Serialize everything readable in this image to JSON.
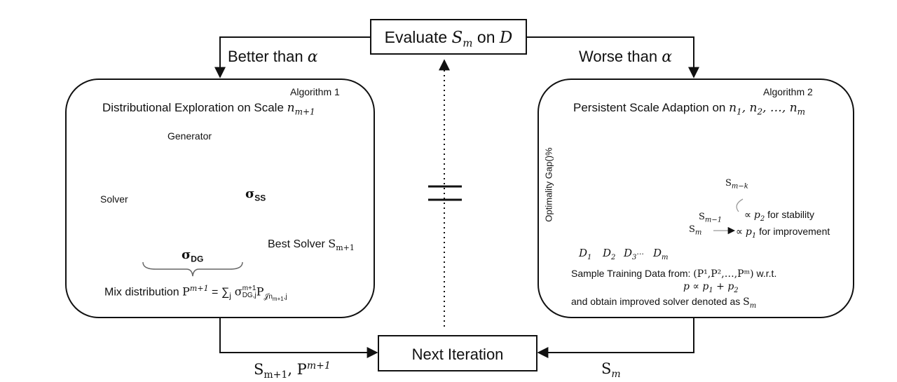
{
  "top_box": {
    "label": "Evaluate",
    "var": "S",
    "sub": "m",
    "mid": " on ",
    "dataset": "D"
  },
  "left_branch": {
    "label": "Better than ",
    "symbol": "α"
  },
  "right_branch": {
    "label": "Worse than ",
    "symbol": "α"
  },
  "bottom_box": {
    "label": "Next Iteration"
  },
  "bottom_left_label": {
    "s": "S",
    "s_sub": "m+1",
    "sep": ", ",
    "p": "P",
    "p_sup": "m+1"
  },
  "bottom_right_label": {
    "s": "S",
    "s_sub": "m"
  },
  "algo1": {
    "tag": "Algorithm 1",
    "title": "Distributional Exploration on Scale ",
    "title_var": "n",
    "title_sub": "m+1",
    "generator_label": "Generator",
    "solver_label": "Solver",
    "sigma_ss": "σ",
    "sigma_ss_sub": "SS",
    "sigma_dg": "σ",
    "sigma_dg_sub": "DG",
    "best_solver": "Best Solver ",
    "best_solver_var": "S",
    "best_solver_sub": "m+1",
    "mix_label": "Mix distribution ",
    "mix_P": "P",
    "mix_sup": "m+1",
    "mix_eq": " = ∑",
    "mix_j": "j",
    "mix_sigma": " σ",
    "mix_sigma_sup": "m+1",
    "mix_sigma_sub": "DG,j",
    "mix_P2": "P",
    "mix_P2_sub": "𝒥n",
    "mix_P2_subsub": "m+1",
    "mix_P2_subj": ",j",
    "accent": "#7a9bd8",
    "highlight": "#f4a0a0"
  },
  "algo2": {
    "tag": "Algorithm 2",
    "title": "Persistent Scale Adaption on ",
    "title_vars": "n",
    "title_seq": [
      "1",
      "2",
      "m"
    ],
    "y_axis": "Optimality Gap()%",
    "x_ticks": [
      "D",
      "D",
      "D",
      "D"
    ],
    "x_tick_subs": [
      "1",
      "2",
      "3",
      "m"
    ],
    "x_dots": "···",
    "series_labels": [
      {
        "var": "S",
        "sub": "m−k"
      },
      {
        "var": "S",
        "sub": "m−1"
      },
      {
        "var": "S",
        "sub": "m"
      }
    ],
    "stability_note": "∝ ",
    "stability_var": "p",
    "stability_sub": "2",
    "stability_text": " for stability",
    "improve_note": "∝ ",
    "improve_var": "p",
    "improve_sub": "1",
    "improve_text": " for improvement",
    "sample_line": "Sample Training Data from: ",
    "sample_set": "(P¹,P²,…,Pᵐ)",
    "sample_wrt": " w.r.t.",
    "p_formula": "p ∝ p",
    "p_formula_sub1": "1",
    "p_formula_plus": " + p",
    "p_formula_sub2": "2",
    "obtain_line": "and obtain improved solver denoted as ",
    "obtain_var": "S",
    "obtain_sub": "m",
    "colors": {
      "yellow": "#f2eaa0",
      "green": "#9fd4a6",
      "blue": "#6f72d6"
    }
  }
}
